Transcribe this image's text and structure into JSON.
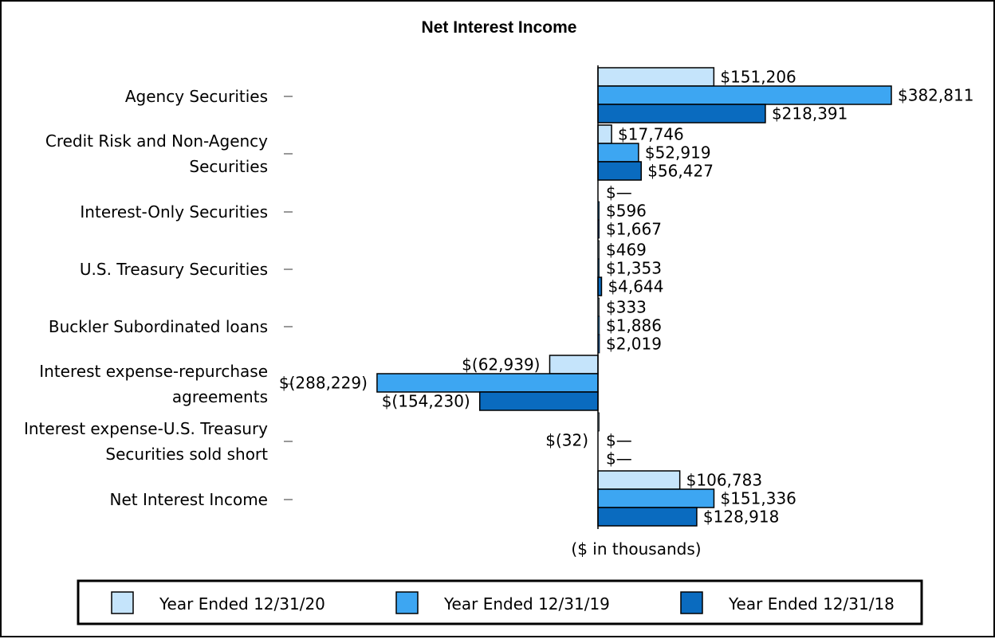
{
  "chart_data": {
    "type": "bar",
    "orientation": "horizontal",
    "title": "Net Interest Income",
    "xlabel": "($ in thousands)",
    "ylabel": "",
    "categories": [
      [
        "Agency Securities"
      ],
      [
        "Credit Risk and Non-Agency",
        "Securities"
      ],
      [
        "Interest-Only Securities"
      ],
      [
        "U.S. Treasury Securities"
      ],
      [
        "Buckler Subordinated loans"
      ],
      [
        "Interest expense-repurchase",
        "agreements"
      ],
      [
        "Interest expense-U.S. Treasury",
        "Securities sold short"
      ],
      [
        "Net Interest Income"
      ]
    ],
    "series": [
      {
        "name": "Year Ended 12/31/20",
        "color": "#c5e4fb",
        "values": [
          151206,
          17746,
          0,
          469,
          333,
          -62939,
          -32,
          106783
        ],
        "labels": [
          "$151,206",
          "$17,746",
          "$—",
          "$469",
          "$333",
          "$(62,939)",
          "$(32)",
          "$106,783"
        ]
      },
      {
        "name": "Year Ended 12/31/19",
        "color": "#3da6f2",
        "values": [
          382811,
          52919,
          596,
          1353,
          1886,
          -288229,
          0,
          151336
        ],
        "labels": [
          "$382,811",
          "$52,919",
          "$596",
          "$1,353",
          "$1,886",
          "$(288,229)",
          "$—",
          "$151,336"
        ]
      },
      {
        "name": "Year Ended 12/31/18",
        "color": "#0a6bbf",
        "values": [
          218391,
          56427,
          1667,
          4644,
          2019,
          -154230,
          0,
          128918
        ],
        "labels": [
          "$218,391",
          "$56,427",
          "$1,667",
          "$4,644",
          "$2,019",
          "$(154,230)",
          "$—",
          "$128,918"
        ]
      }
    ],
    "legend_position": "bottom",
    "grid": false
  }
}
